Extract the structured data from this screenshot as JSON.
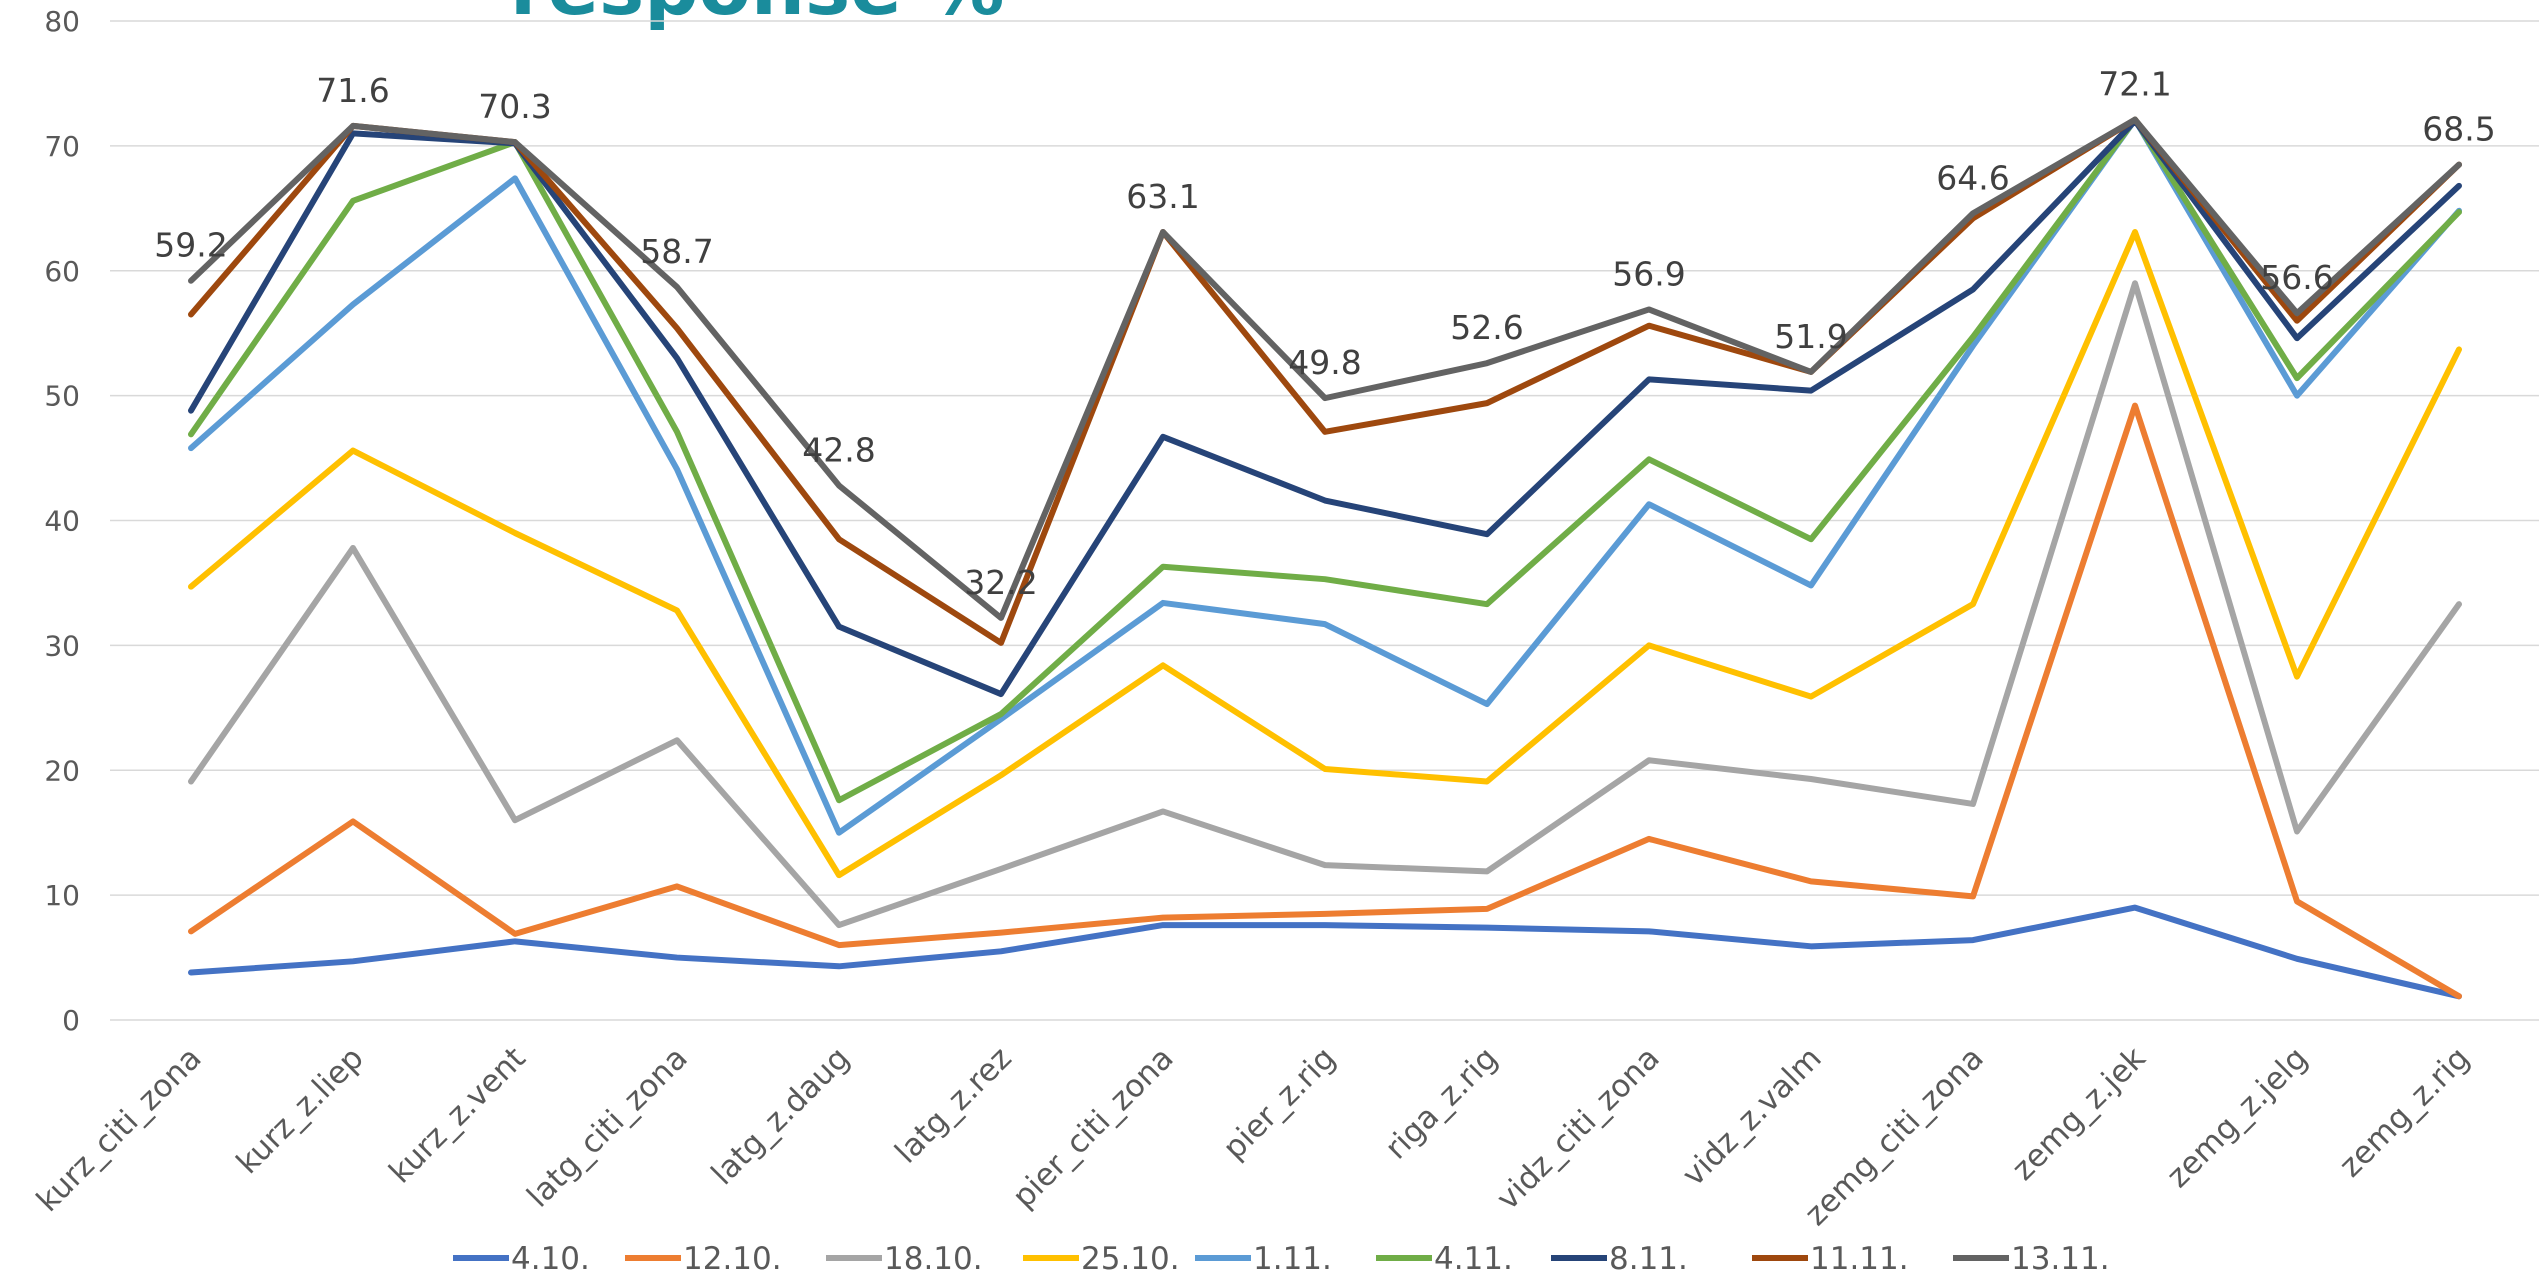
{
  "chart_data": {
    "type": "line",
    "title": "response %",
    "categories": [
      "kurz_citi_zona",
      "kurz_z.liep",
      "kurz_z.vent",
      "latg_citi_zona",
      "latg_z.daug",
      "latg_z.rez",
      "pier_citi_zona",
      "pier_z.rig",
      "riga_z.rig",
      "vidz_citi_zona",
      "vidz_z.valm",
      "zemg_citi_zona",
      "zemg_z.jek",
      "zemg_z.jelg",
      "zemg_z.rig"
    ],
    "ylim": [
      0,
      80
    ],
    "yticks": [
      0,
      10,
      20,
      30,
      40,
      50,
      60,
      70,
      80
    ],
    "grid": true,
    "legend": "bottom",
    "series": [
      {
        "name": "4.10.",
        "color": "#4472c4",
        "values": [
          3.8,
          4.7,
          6.3,
          5.0,
          4.3,
          5.5,
          7.6,
          7.6,
          7.4,
          7.1,
          5.9,
          6.4,
          9.0,
          4.9,
          1.9
        ]
      },
      {
        "name": "12.10.",
        "color": "#ed7d31",
        "values": [
          7.1,
          15.9,
          6.9,
          10.7,
          6.0,
          7.0,
          8.2,
          8.5,
          8.9,
          14.5,
          11.1,
          9.9,
          49.2,
          9.5,
          1.9
        ]
      },
      {
        "name": "18.10.",
        "color": "#a5a5a5",
        "values": [
          19.1,
          37.8,
          16.0,
          22.4,
          7.6,
          12.1,
          16.7,
          12.4,
          11.9,
          20.8,
          19.3,
          17.3,
          59.0,
          15.1,
          33.3
        ]
      },
      {
        "name": "25.10.",
        "color": "#ffc000",
        "values": [
          34.7,
          45.6,
          39.0,
          32.8,
          11.6,
          19.6,
          28.4,
          20.1,
          19.1,
          30.0,
          25.9,
          33.3,
          63.1,
          27.5,
          53.7
        ]
      },
      {
        "name": "1.11.",
        "color": "#5b9bd5",
        "values": [
          45.8,
          57.3,
          67.4,
          44.1,
          15.0,
          24.1,
          33.4,
          31.7,
          25.3,
          41.3,
          34.8,
          54.0,
          72.1,
          50.0,
          64.8
        ]
      },
      {
        "name": "4.11.",
        "color": "#70ad47",
        "values": [
          46.9,
          65.6,
          70.3,
          47.1,
          17.6,
          24.5,
          36.3,
          35.3,
          33.3,
          44.9,
          38.5,
          54.7,
          72.1,
          51.4,
          64.7
        ]
      },
      {
        "name": "8.11.",
        "color": "#264478",
        "values": [
          48.8,
          71.0,
          70.2,
          53.0,
          31.5,
          26.1,
          46.7,
          41.6,
          38.9,
          51.3,
          50.4,
          58.5,
          72.0,
          54.6,
          66.8
        ]
      },
      {
        "name": "11.11.",
        "color": "#9e480e",
        "values": [
          56.5,
          71.6,
          70.3,
          55.4,
          38.5,
          30.2,
          63.1,
          47.1,
          49.4,
          55.6,
          51.9,
          64.2,
          72.1,
          56.0,
          68.5
        ]
      },
      {
        "name": "13.11.",
        "color": "#636363",
        "data_labels": true,
        "values": [
          59.2,
          71.6,
          70.3,
          58.7,
          42.8,
          32.2,
          63.1,
          49.8,
          52.6,
          56.9,
          51.9,
          64.6,
          72.1,
          56.6,
          68.5
        ]
      }
    ]
  }
}
